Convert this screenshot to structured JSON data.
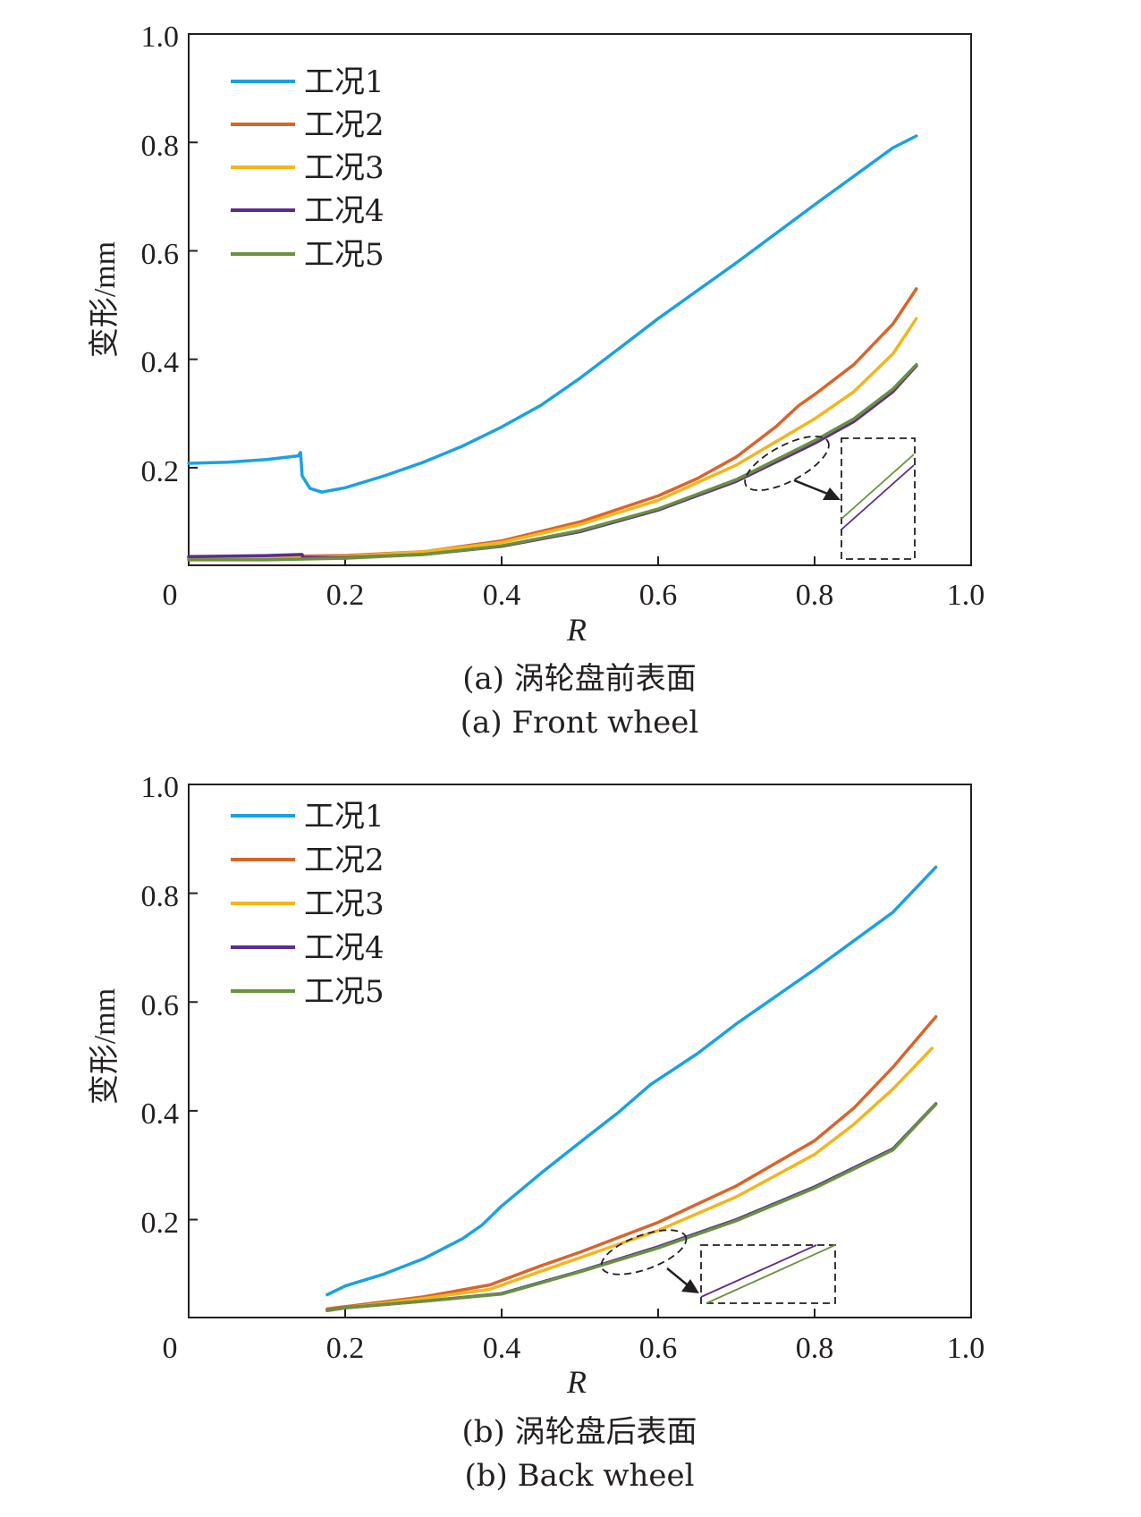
{
  "chart_data": [
    {
      "type": "line",
      "caption_cn": "(a) 涡轮盘前表面",
      "caption_en": "(a) Front wheel",
      "xlabel": "R",
      "ylabel": "变形/mm",
      "xlim": [
        0,
        1.0
      ],
      "ylim": [
        0.02,
        1.0
      ],
      "xticks": [
        "0",
        "0.2",
        "0.4",
        "0.6",
        "0.8",
        "1.0"
      ],
      "yticks": [
        "0.2",
        "0.4",
        "0.6",
        "0.8",
        "1.0"
      ],
      "legend_position": "top-left",
      "series": [
        {
          "name": "工况1",
          "color": "#1ba1e2",
          "points": [
            [
              0,
              0.208
            ],
            [
              0.05,
              0.21
            ],
            [
              0.1,
              0.215
            ],
            [
              0.14,
              0.222
            ],
            [
              0.143,
              0.228
            ],
            [
              0.145,
              0.185
            ],
            [
              0.155,
              0.162
            ],
            [
              0.17,
              0.155
            ],
            [
              0.2,
              0.163
            ],
            [
              0.25,
              0.185
            ],
            [
              0.3,
              0.21
            ],
            [
              0.35,
              0.24
            ],
            [
              0.4,
              0.275
            ],
            [
              0.45,
              0.315
            ],
            [
              0.5,
              0.365
            ],
            [
              0.55,
              0.42
            ],
            [
              0.6,
              0.475
            ],
            [
              0.7,
              0.578
            ],
            [
              0.8,
              0.685
            ],
            [
              0.9,
              0.79
            ],
            [
              0.93,
              0.812
            ]
          ]
        },
        {
          "name": "工况2",
          "color": "#d9642a",
          "points": [
            [
              0,
              0.034
            ],
            [
              0.1,
              0.036
            ],
            [
              0.2,
              0.038
            ],
            [
              0.3,
              0.045
            ],
            [
              0.4,
              0.065
            ],
            [
              0.5,
              0.1
            ],
            [
              0.6,
              0.148
            ],
            [
              0.65,
              0.18
            ],
            [
              0.7,
              0.22
            ],
            [
              0.75,
              0.275
            ],
            [
              0.78,
              0.315
            ],
            [
              0.8,
              0.335
            ],
            [
              0.85,
              0.39
            ],
            [
              0.9,
              0.465
            ],
            [
              0.93,
              0.53
            ]
          ]
        },
        {
          "name": "工况3",
          "color": "#f2b51c",
          "points": [
            [
              0,
              0.03
            ],
            [
              0.1,
              0.032
            ],
            [
              0.2,
              0.036
            ],
            [
              0.3,
              0.045
            ],
            [
              0.4,
              0.062
            ],
            [
              0.5,
              0.095
            ],
            [
              0.6,
              0.14
            ],
            [
              0.7,
              0.205
            ],
            [
              0.8,
              0.29
            ],
            [
              0.85,
              0.34
            ],
            [
              0.9,
              0.41
            ],
            [
              0.93,
              0.475
            ]
          ]
        },
        {
          "name": "工况4",
          "color": "#5b2d8f",
          "points": [
            [
              0,
              0.036
            ],
            [
              0.1,
              0.038
            ],
            [
              0.145,
              0.04
            ],
            [
              0.146,
              0.034
            ],
            [
              0.2,
              0.034
            ],
            [
              0.3,
              0.04
            ],
            [
              0.4,
              0.055
            ],
            [
              0.5,
              0.082
            ],
            [
              0.6,
              0.122
            ],
            [
              0.7,
              0.175
            ],
            [
              0.8,
              0.245
            ],
            [
              0.85,
              0.285
            ],
            [
              0.9,
              0.34
            ],
            [
              0.93,
              0.388
            ]
          ]
        },
        {
          "name": "工况5",
          "color": "#6a9040",
          "points": [
            [
              0,
              0.03
            ],
            [
              0.1,
              0.03
            ],
            [
              0.2,
              0.033
            ],
            [
              0.3,
              0.04
            ],
            [
              0.4,
              0.056
            ],
            [
              0.5,
              0.084
            ],
            [
              0.6,
              0.124
            ],
            [
              0.7,
              0.178
            ],
            [
              0.8,
              0.25
            ],
            [
              0.85,
              0.29
            ],
            [
              0.9,
              0.345
            ],
            [
              0.93,
              0.39
            ]
          ]
        }
      ]
    },
    {
      "type": "line",
      "caption_cn": "(b) 涡轮盘后表面",
      "caption_en": "(b) Back wheel",
      "xlabel": "R",
      "ylabel": "变形/mm",
      "xlim": [
        0,
        1.0
      ],
      "ylim": [
        0.02,
        1.0
      ],
      "xticks": [
        "0",
        "0.2",
        "0.4",
        "0.6",
        "0.8",
        "1.0"
      ],
      "yticks": [
        "0.2",
        "0.4",
        "0.6",
        "0.8",
        "1.0"
      ],
      "legend_position": "top-left",
      "series": [
        {
          "name": "工况1",
          "color": "#1ba1e2",
          "points": [
            [
              0.177,
              0.062
            ],
            [
              0.2,
              0.078
            ],
            [
              0.25,
              0.1
            ],
            [
              0.3,
              0.128
            ],
            [
              0.35,
              0.165
            ],
            [
              0.375,
              0.19
            ],
            [
              0.4,
              0.225
            ],
            [
              0.45,
              0.285
            ],
            [
              0.5,
              0.342
            ],
            [
              0.55,
              0.398
            ],
            [
              0.59,
              0.448
            ],
            [
              0.65,
              0.505
            ],
            [
              0.7,
              0.56
            ],
            [
              0.8,
              0.66
            ],
            [
              0.9,
              0.765
            ],
            [
              0.955,
              0.848
            ]
          ]
        },
        {
          "name": "工况2",
          "color": "#d9642a",
          "points": [
            [
              0.177,
              0.036
            ],
            [
              0.2,
              0.04
            ],
            [
              0.3,
              0.058
            ],
            [
              0.385,
              0.08
            ],
            [
              0.45,
              0.115
            ],
            [
              0.5,
              0.14
            ],
            [
              0.6,
              0.195
            ],
            [
              0.7,
              0.262
            ],
            [
              0.8,
              0.345
            ],
            [
              0.85,
              0.405
            ],
            [
              0.9,
              0.48
            ],
            [
              0.955,
              0.573
            ]
          ]
        },
        {
          "name": "工况3",
          "color": "#f2b51c",
          "points": [
            [
              0.177,
              0.033
            ],
            [
              0.2,
              0.038
            ],
            [
              0.3,
              0.055
            ],
            [
              0.385,
              0.072
            ],
            [
              0.45,
              0.105
            ],
            [
              0.5,
              0.13
            ],
            [
              0.6,
              0.18
            ],
            [
              0.7,
              0.242
            ],
            [
              0.8,
              0.32
            ],
            [
              0.85,
              0.375
            ],
            [
              0.9,
              0.44
            ],
            [
              0.95,
              0.515
            ]
          ]
        },
        {
          "name": "工况4",
          "color": "#5b2d8f",
          "points": [
            [
              0.177,
              0.033
            ],
            [
              0.2,
              0.038
            ],
            [
              0.3,
              0.05
            ],
            [
              0.4,
              0.064
            ],
            [
              0.5,
              0.105
            ],
            [
              0.6,
              0.15
            ],
            [
              0.7,
              0.2
            ],
            [
              0.8,
              0.26
            ],
            [
              0.9,
              0.33
            ],
            [
              0.955,
              0.413
            ]
          ]
        },
        {
          "name": "工况5",
          "color": "#6a9040",
          "points": [
            [
              0.177,
              0.033
            ],
            [
              0.2,
              0.038
            ],
            [
              0.3,
              0.05
            ],
            [
              0.4,
              0.063
            ],
            [
              0.5,
              0.104
            ],
            [
              0.6,
              0.148
            ],
            [
              0.7,
              0.198
            ],
            [
              0.8,
              0.258
            ],
            [
              0.9,
              0.328
            ],
            [
              0.955,
              0.412
            ]
          ]
        }
      ]
    }
  ]
}
